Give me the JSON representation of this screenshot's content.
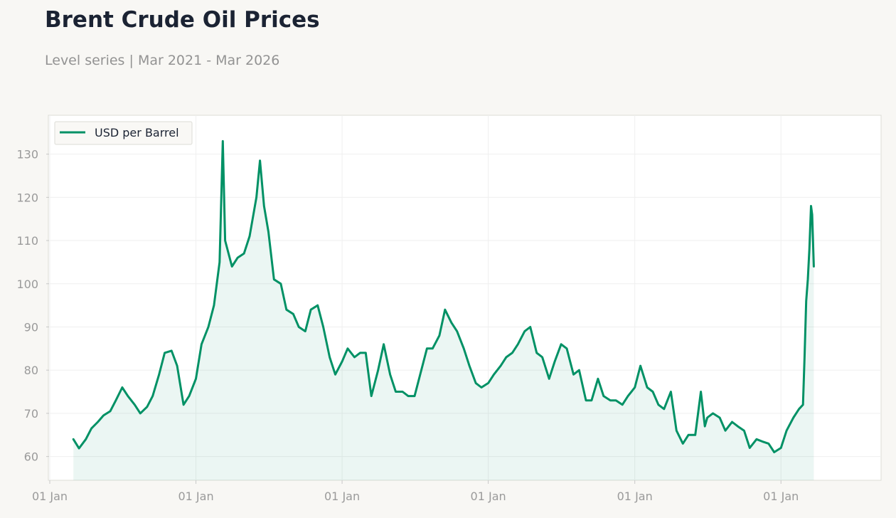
{
  "header": {
    "title": "Brent Crude Oil Prices",
    "subtitle": "Level series | Mar 2021 - Mar 2026"
  },
  "colors": {
    "line": "#009165",
    "fill": "#009165",
    "grid": "#efefef",
    "axis_text": "#9a9a9a",
    "plot_background": "#ffffff",
    "page_background": "#f8f7f4"
  },
  "chart_data": {
    "type": "area",
    "title": "Brent Crude Oil Prices",
    "subtitle": "Level series | Mar 2021 - Mar 2026",
    "xlabel": "",
    "ylabel": "",
    "x_ticks": [
      {
        "date": "2021-01-01",
        "label": "01 Jan"
      },
      {
        "date": "2022-01-01",
        "label": "01 Jan"
      },
      {
        "date": "2023-01-01",
        "label": "01 Jan"
      },
      {
        "date": "2024-01-01",
        "label": "01 Jan"
      },
      {
        "date": "2025-01-01",
        "label": "01 Jan"
      },
      {
        "date": "2026-01-01",
        "label": "01 Jan"
      }
    ],
    "y_ticks": [
      60,
      70,
      80,
      90,
      100,
      110,
      120,
      130
    ],
    "xlim": [
      "2021-01-01",
      "2026-09-08"
    ],
    "ylim": [
      54.5,
      139
    ],
    "grid": true,
    "legend_position": "top-left",
    "series": [
      {
        "name": "USD per Barrel",
        "points": [
          [
            "2021-03-01",
            64
          ],
          [
            "2021-03-15",
            61.9
          ],
          [
            "2021-04-01",
            64
          ],
          [
            "2021-04-15",
            66.5
          ],
          [
            "2021-05-01",
            68
          ],
          [
            "2021-05-15",
            69.5
          ],
          [
            "2021-06-01",
            70.5
          ],
          [
            "2021-06-15",
            73
          ],
          [
            "2021-07-01",
            76
          ],
          [
            "2021-07-15",
            74
          ],
          [
            "2021-08-01",
            72
          ],
          [
            "2021-08-15",
            70
          ],
          [
            "2021-09-01",
            71.5
          ],
          [
            "2021-09-15",
            74
          ],
          [
            "2021-10-01",
            79
          ],
          [
            "2021-10-15",
            84
          ],
          [
            "2021-11-01",
            84.5
          ],
          [
            "2021-11-15",
            81
          ],
          [
            "2021-12-01",
            72
          ],
          [
            "2021-12-15",
            74
          ],
          [
            "2022-01-01",
            78
          ],
          [
            "2022-01-15",
            86
          ],
          [
            "2022-02-01",
            90
          ],
          [
            "2022-02-15",
            95
          ],
          [
            "2022-03-01",
            105
          ],
          [
            "2022-03-09",
            133
          ],
          [
            "2022-03-15",
            110
          ],
          [
            "2022-04-01",
            104
          ],
          [
            "2022-04-15",
            106
          ],
          [
            "2022-05-01",
            107
          ],
          [
            "2022-05-15",
            111
          ],
          [
            "2022-06-01",
            120
          ],
          [
            "2022-06-10",
            128.5
          ],
          [
            "2022-06-20",
            118
          ],
          [
            "2022-07-01",
            112
          ],
          [
            "2022-07-15",
            101
          ],
          [
            "2022-08-01",
            100
          ],
          [
            "2022-08-15",
            94
          ],
          [
            "2022-09-01",
            93
          ],
          [
            "2022-09-15",
            90
          ],
          [
            "2022-10-01",
            89
          ],
          [
            "2022-10-15",
            94
          ],
          [
            "2022-11-01",
            95
          ],
          [
            "2022-11-15",
            90
          ],
          [
            "2022-12-01",
            83
          ],
          [
            "2022-12-15",
            79
          ],
          [
            "2023-01-01",
            82
          ],
          [
            "2023-01-15",
            85
          ],
          [
            "2023-02-01",
            83
          ],
          [
            "2023-02-15",
            84
          ],
          [
            "2023-03-01",
            84
          ],
          [
            "2023-03-15",
            74
          ],
          [
            "2023-04-01",
            80
          ],
          [
            "2023-04-15",
            86
          ],
          [
            "2023-05-01",
            79
          ],
          [
            "2023-05-15",
            75
          ],
          [
            "2023-06-01",
            75
          ],
          [
            "2023-06-15",
            74
          ],
          [
            "2023-07-01",
            74
          ],
          [
            "2023-07-15",
            79
          ],
          [
            "2023-08-01",
            85
          ],
          [
            "2023-08-15",
            85
          ],
          [
            "2023-09-01",
            88
          ],
          [
            "2023-09-15",
            94
          ],
          [
            "2023-10-01",
            91
          ],
          [
            "2023-10-15",
            89
          ],
          [
            "2023-11-01",
            85
          ],
          [
            "2023-11-15",
            81
          ],
          [
            "2023-12-01",
            77
          ],
          [
            "2023-12-15",
            76
          ],
          [
            "2024-01-01",
            77
          ],
          [
            "2024-01-15",
            79
          ],
          [
            "2024-02-01",
            81
          ],
          [
            "2024-02-15",
            83
          ],
          [
            "2024-03-01",
            84
          ],
          [
            "2024-03-15",
            86
          ],
          [
            "2024-04-01",
            89
          ],
          [
            "2024-04-15",
            90
          ],
          [
            "2024-05-01",
            84
          ],
          [
            "2024-05-15",
            83
          ],
          [
            "2024-06-01",
            78
          ],
          [
            "2024-06-15",
            82
          ],
          [
            "2024-07-01",
            86
          ],
          [
            "2024-07-15",
            85
          ],
          [
            "2024-08-01",
            79
          ],
          [
            "2024-08-15",
            80
          ],
          [
            "2024-09-01",
            73
          ],
          [
            "2024-09-15",
            73
          ],
          [
            "2024-10-01",
            78
          ],
          [
            "2024-10-15",
            74
          ],
          [
            "2024-11-01",
            73
          ],
          [
            "2024-11-15",
            73
          ],
          [
            "2024-12-01",
            72
          ],
          [
            "2024-12-15",
            74
          ],
          [
            "2025-01-01",
            76
          ],
          [
            "2025-01-15",
            81
          ],
          [
            "2025-02-01",
            76
          ],
          [
            "2025-02-15",
            75
          ],
          [
            "2025-03-01",
            72
          ],
          [
            "2025-03-15",
            71
          ],
          [
            "2025-04-01",
            75
          ],
          [
            "2025-04-15",
            66
          ],
          [
            "2025-05-01",
            63
          ],
          [
            "2025-05-15",
            65
          ],
          [
            "2025-06-01",
            65
          ],
          [
            "2025-06-15",
            75
          ],
          [
            "2025-06-25",
            67
          ],
          [
            "2025-07-01",
            69
          ],
          [
            "2025-07-15",
            70
          ],
          [
            "2025-08-01",
            69
          ],
          [
            "2025-08-15",
            66
          ],
          [
            "2025-09-01",
            68
          ],
          [
            "2025-09-15",
            67
          ],
          [
            "2025-10-01",
            66
          ],
          [
            "2025-10-15",
            62
          ],
          [
            "2025-11-01",
            64
          ],
          [
            "2025-11-15",
            63.5
          ],
          [
            "2025-12-01",
            63
          ],
          [
            "2025-12-15",
            61
          ],
          [
            "2026-01-01",
            62
          ],
          [
            "2026-01-15",
            66
          ],
          [
            "2026-02-01",
            69
          ],
          [
            "2026-02-15",
            71
          ],
          [
            "2026-02-25",
            72
          ],
          [
            "2026-03-01",
            83
          ],
          [
            "2026-03-05",
            96
          ],
          [
            "2026-03-09",
            101
          ],
          [
            "2026-03-13",
            108
          ],
          [
            "2026-03-17",
            118
          ],
          [
            "2026-03-20",
            116
          ],
          [
            "2026-03-24",
            104
          ]
        ]
      }
    ]
  }
}
